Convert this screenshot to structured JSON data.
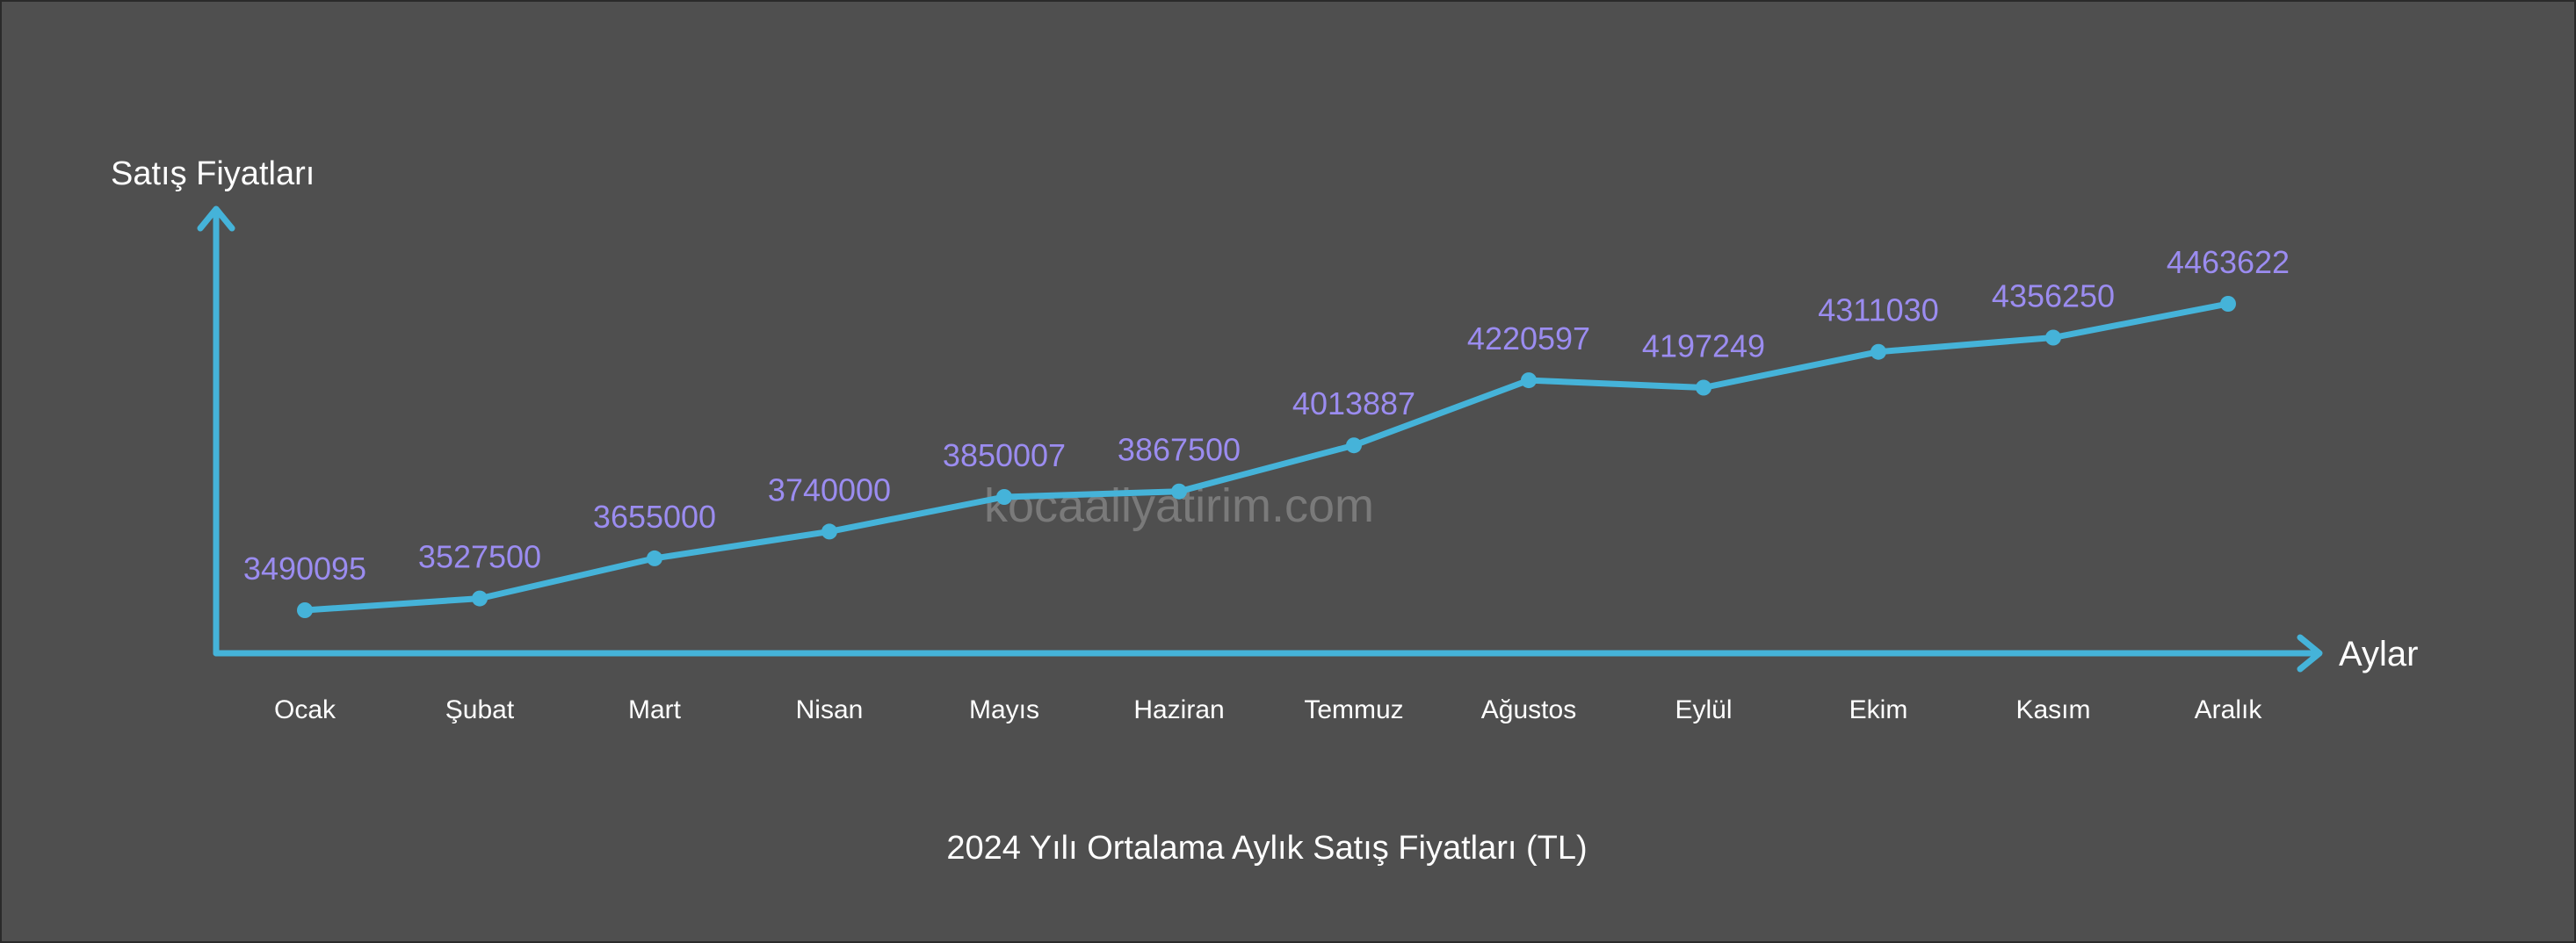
{
  "chart_data": {
    "type": "line",
    "title": "2024 Yılı Ortalama Aylık Satış Fiyatları (TL)",
    "ylabel": "Satış Fiyatları",
    "xlabel": "Aylar",
    "watermark": "kocaaliyatirim.com",
    "categories": [
      "Ocak",
      "Şubat",
      "Mart",
      "Nisan",
      "Mayıs",
      "Haziran",
      "Temmuz",
      "Ağustos",
      "Eylül",
      "Ekim",
      "Kasım",
      "Aralık"
    ],
    "series": [
      {
        "values": [
          3490095,
          3527500,
          3655000,
          3740000,
          3850007,
          3867500,
          4013887,
          4220597,
          4197249,
          4311030,
          4356250,
          4463622
        ],
        "labels": [
          "3490095",
          "3527500",
          "3655000",
          "3740000",
          "3850007",
          "3867500",
          "4013887",
          "4220597",
          "4197249",
          "4311030",
          "4356250",
          "4463622"
        ]
      }
    ],
    "grid": false,
    "colors": {
      "background": "#4f4f4f",
      "line": "#45b3d9",
      "data_label": "#9b8cf0",
      "text": "#ffffff",
      "watermark": "#7a7a7a"
    }
  }
}
